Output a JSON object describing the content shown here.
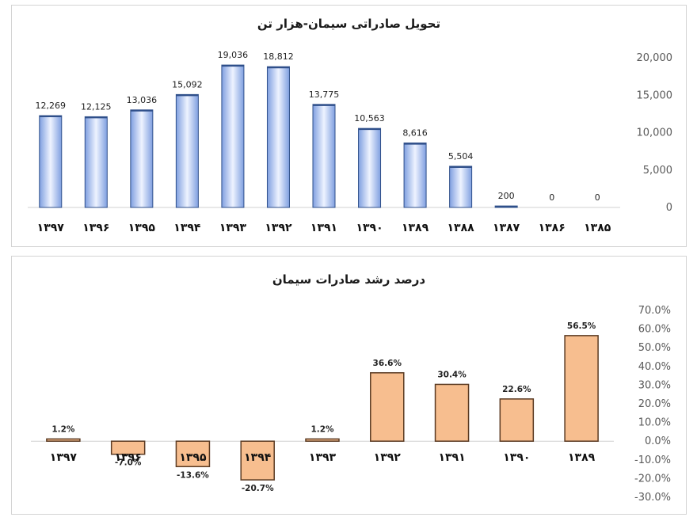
{
  "chart_data": [
    {
      "type": "bar",
      "title": "تحویل صادراتی سیمان-هزار تن",
      "categories": [
        "۱۳۹۷",
        "۱۳۹۶",
        "۱۳۹۵",
        "۱۳۹۴",
        "۱۳۹۳",
        "۱۳۹۲",
        "۱۳۹۱",
        "۱۳۹۰",
        "۱۳۸۹",
        "۱۳۸۸",
        "۱۳۸۷",
        "۱۳۸۶",
        "۱۳۸۵"
      ],
      "values": [
        12269,
        12125,
        13036,
        15092,
        19036,
        18812,
        13775,
        10563,
        8616,
        5504,
        200,
        0,
        0
      ],
      "data_labels": [
        "12,269",
        "12,125",
        "13,036",
        "15,092",
        "19,036",
        "18,812",
        "13,775",
        "10,563",
        "8,616",
        "5,504",
        "200",
        "0",
        "0"
      ],
      "ylim": [
        0,
        20000
      ],
      "yticks": [
        "0",
        "5,000",
        "10,000",
        "15,000",
        "20,000"
      ],
      "ytick_values": [
        0,
        5000,
        10000,
        15000,
        20000
      ],
      "yaxis_side": "right",
      "grid": false,
      "bar_color": "#9db8ec",
      "bar_edge": "#2f4f8a"
    },
    {
      "type": "bar",
      "title": "درصد رشد صادرات سیمان",
      "categories": [
        "۱۳۹۷",
        "۱۳۹۶",
        "۱۳۹۵",
        "۱۳۹۴",
        "۱۳۹۳",
        "۱۳۹۲",
        "۱۳۹۱",
        "۱۳۹۰",
        "۱۳۸۹"
      ],
      "values": [
        1.2,
        -7.0,
        -13.6,
        -20.7,
        1.2,
        36.6,
        30.4,
        22.6,
        56.5
      ],
      "data_labels": [
        "1.2%",
        "-7.0%",
        "-13.6%",
        "-20.7%",
        "1.2%",
        "36.6%",
        "30.4%",
        "22.6%",
        "56.5%"
      ],
      "ylim": [
        -30,
        70
      ],
      "yticks": [
        "-30.0%",
        "-20.0%",
        "-10.0%",
        "0.0%",
        "10.0%",
        "20.0%",
        "30.0%",
        "40.0%",
        "50.0%",
        "60.0%",
        "70.0%"
      ],
      "ytick_values": [
        -30,
        -20,
        -10,
        0,
        10,
        20,
        30,
        40,
        50,
        60,
        70
      ],
      "yaxis_side": "right",
      "grid": false,
      "bar_color": "#f7be8f",
      "bar_edge": "#5a3a22"
    }
  ]
}
